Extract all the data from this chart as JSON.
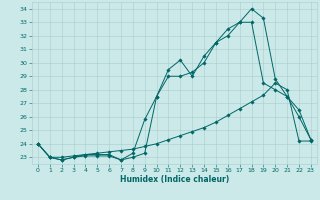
{
  "xlabel": "Humidex (Indice chaleur)",
  "bg_color": "#cce9e9",
  "grid_color": "#aacccc",
  "line_color": "#006666",
  "xlim": [
    -0.5,
    23.5
  ],
  "ylim": [
    22.5,
    34.5
  ],
  "xticks": [
    0,
    1,
    2,
    3,
    4,
    5,
    6,
    7,
    8,
    9,
    10,
    11,
    12,
    13,
    14,
    15,
    16,
    17,
    18,
    19,
    20,
    21,
    22,
    23
  ],
  "yticks": [
    23,
    24,
    25,
    26,
    27,
    28,
    29,
    30,
    31,
    32,
    33,
    34
  ],
  "line1_x": [
    0,
    1,
    2,
    3,
    4,
    5,
    6,
    7,
    8,
    9,
    10,
    11,
    12,
    13,
    14,
    15,
    16,
    17,
    18,
    19,
    20,
    21,
    22,
    23
  ],
  "line1_y": [
    24,
    23,
    22.8,
    23.0,
    23.1,
    23.1,
    23.1,
    22.8,
    23.3,
    25.8,
    27.5,
    29.5,
    30.2,
    29.0,
    30.5,
    31.5,
    32.5,
    33.0,
    34.0,
    33.3,
    28.8,
    27.5,
    26.5,
    24.3
  ],
  "line2_x": [
    0,
    1,
    2,
    3,
    4,
    5,
    6,
    7,
    8,
    9,
    10,
    11,
    12,
    13,
    14,
    15,
    16,
    17,
    18,
    19,
    20,
    21,
    22,
    23
  ],
  "line2_y": [
    24,
    23,
    22.8,
    23.0,
    23.2,
    23.2,
    23.2,
    22.8,
    23.0,
    23.3,
    27.5,
    29.0,
    29.0,
    29.3,
    30.0,
    31.5,
    32.0,
    33.0,
    33.0,
    28.5,
    28.0,
    27.5,
    26.0,
    24.3
  ],
  "line3_x": [
    0,
    1,
    2,
    3,
    4,
    5,
    6,
    7,
    8,
    9,
    10,
    11,
    12,
    13,
    14,
    15,
    16,
    17,
    18,
    19,
    20,
    21,
    22,
    23
  ],
  "line3_y": [
    24,
    23,
    23.0,
    23.1,
    23.2,
    23.3,
    23.4,
    23.5,
    23.6,
    23.8,
    24.0,
    24.3,
    24.6,
    24.9,
    25.2,
    25.6,
    26.1,
    26.6,
    27.1,
    27.6,
    28.5,
    28.0,
    24.2,
    24.2
  ]
}
